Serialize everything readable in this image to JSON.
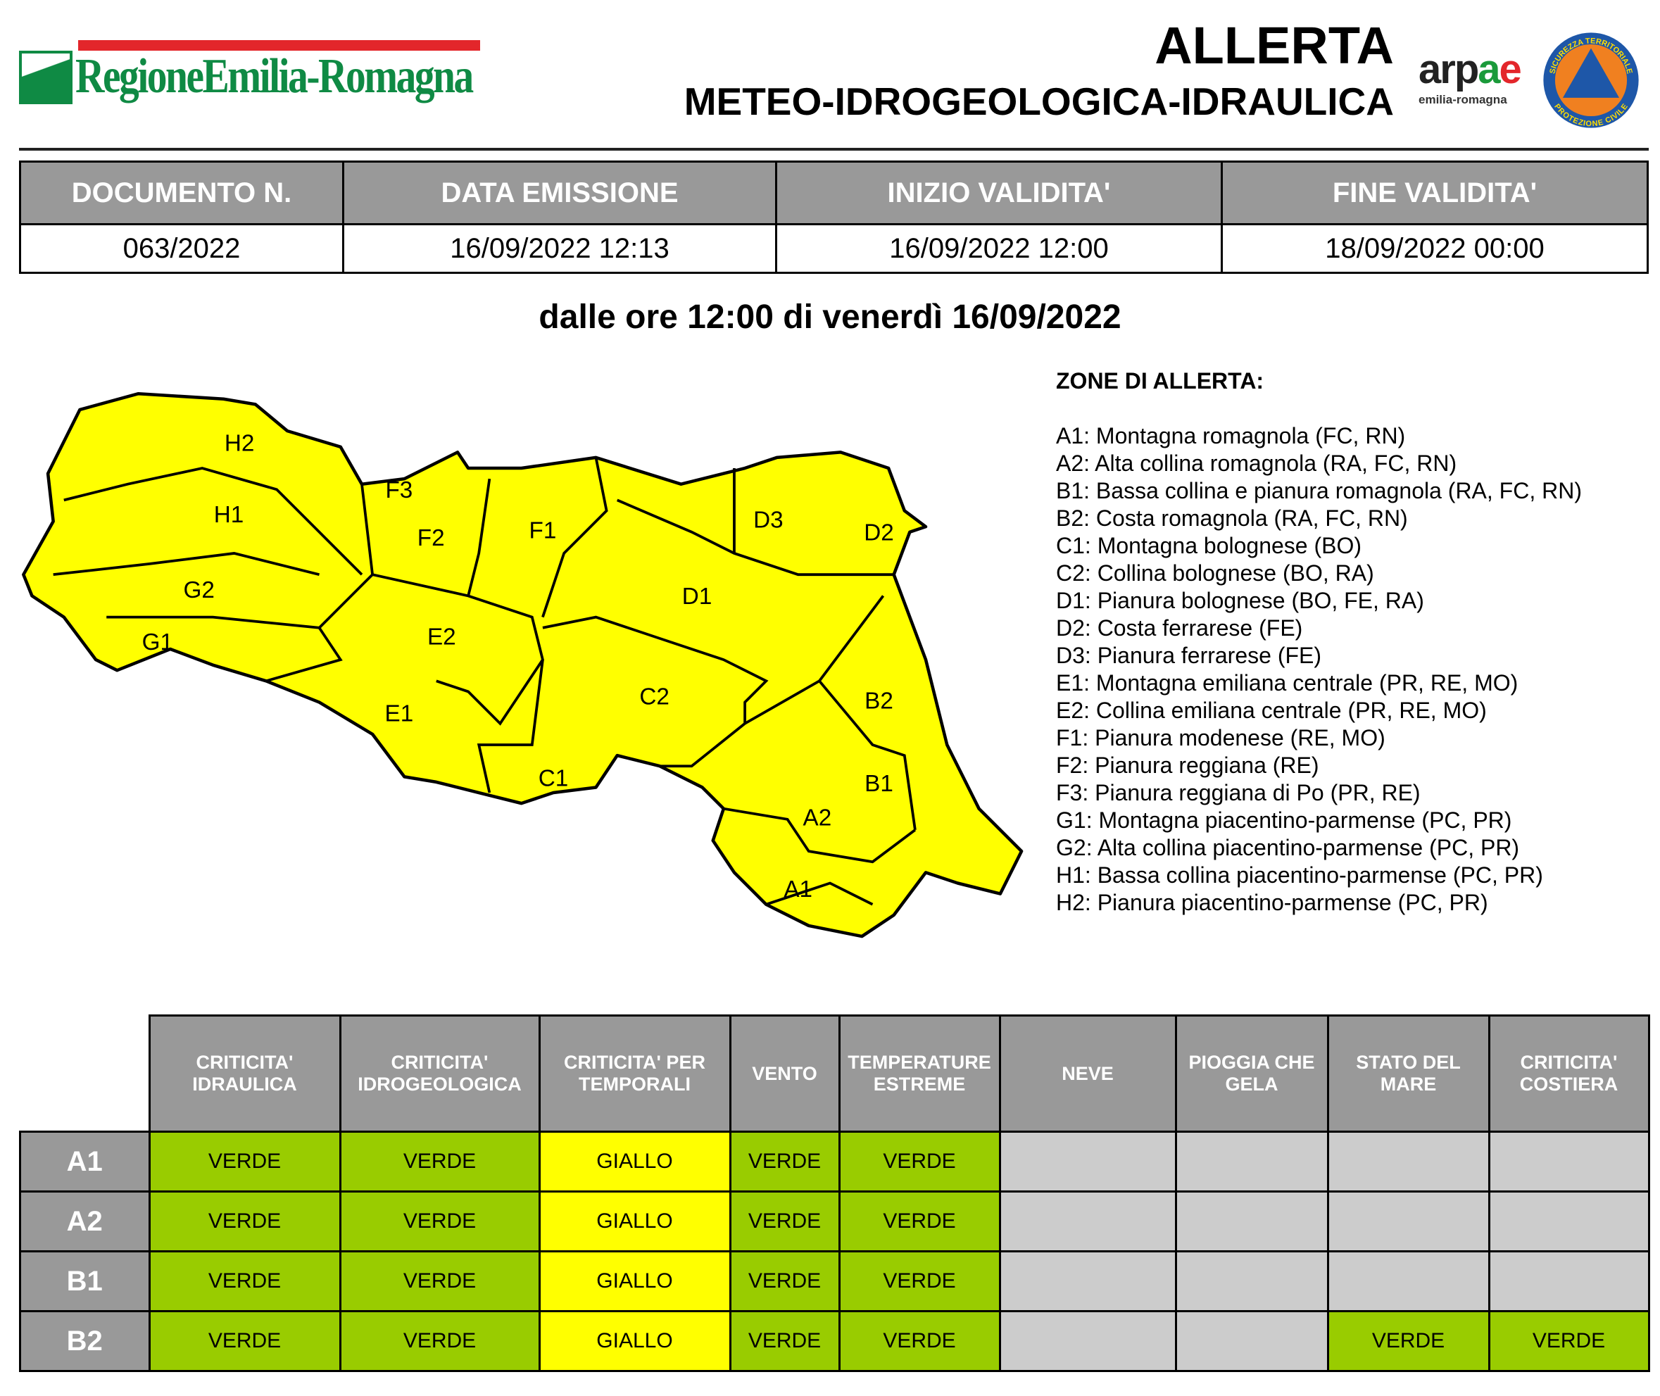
{
  "header": {
    "logo_text": "RegioneEmilia-Romagna",
    "title": "ALLERTA",
    "subtitle": "METEO-IDROGEOLOGICA-IDRAULICA",
    "arpae_logo": {
      "main": "arpae",
      "sub": "emilia-romagna"
    },
    "pc_logo": {
      "top": "SICUREZZA TERRITORIALE",
      "bottom": "PROTEZIONE CIVILE"
    }
  },
  "document": {
    "headers": [
      "DOCUMENTO N.",
      "DATA EMISSIONE",
      "INIZIO VALIDITA'",
      "FINE VALIDITA'"
    ],
    "values": [
      "063/2022",
      "16/09/2022 12:13",
      "16/09/2022 12:00",
      "18/09/2022 00:00"
    ]
  },
  "period": "dalle ore 12:00 di venerdì 16/09/2022",
  "map": {
    "fill": "#ffff00",
    "labels": [
      "H2",
      "H1",
      "F3",
      "F2",
      "F1",
      "D3",
      "D2",
      "D1",
      "G2",
      "G1",
      "E2",
      "E1",
      "C2",
      "B2",
      "B1",
      "C1",
      "A2",
      "A1"
    ]
  },
  "legend": {
    "title": "ZONE DI ALLERTA:",
    "items": [
      "A1: Montagna romagnola (FC, RN)",
      "A2: Alta collina romagnola (RA, FC, RN)",
      "B1: Bassa collina e pianura romagnola (RA, FC, RN)",
      "B2: Costa romagnola (RA, FC, RN)",
      "C1: Montagna bolognese (BO)",
      "C2: Collina bolognese (BO, RA)",
      "D1: Pianura bolognese (BO, FE, RA)",
      "D2: Costa ferrarese (FE)",
      "D3: Pianura ferrarese (FE)",
      "E1: Montagna emiliana centrale (PR, RE, MO)",
      "E2: Collina emiliana centrale (PR, RE, MO)",
      "F1: Pianura modenese (RE, MO)",
      "F2: Pianura reggiana (RE)",
      "F3: Pianura reggiana di Po (PR, RE)",
      "G1: Montagna piacentino-parmense (PC, PR)",
      "G2: Alta collina piacentino-parmense (PC, PR)",
      "H1: Bassa collina piacentino-parmense (PC, PR)",
      "H2: Pianura piacentino-parmense (PC, PR)"
    ]
  },
  "alerts": {
    "colors": {
      "VERDE": "#99cc00",
      "GIALLO": "#ffff00",
      "none": "#cccccc"
    },
    "columns": [
      "CRITICITA' IDRAULICA",
      "CRITICITA' IDROGEOLOGICA",
      "CRITICITA' PER TEMPORALI",
      "VENTO",
      "TEMPERATURE ESTREME",
      "NEVE",
      "PIOGGIA CHE GELA",
      "STATO DEL MARE",
      "CRITICITA' COSTIERA"
    ],
    "rows": [
      {
        "zone": "A1",
        "values": [
          "VERDE",
          "VERDE",
          "GIALLO",
          "VERDE",
          "VERDE",
          "",
          "",
          "",
          ""
        ]
      },
      {
        "zone": "A2",
        "values": [
          "VERDE",
          "VERDE",
          "GIALLO",
          "VERDE",
          "VERDE",
          "",
          "",
          "",
          ""
        ]
      },
      {
        "zone": "B1",
        "values": [
          "VERDE",
          "VERDE",
          "GIALLO",
          "VERDE",
          "VERDE",
          "",
          "",
          "",
          ""
        ]
      },
      {
        "zone": "B2",
        "values": [
          "VERDE",
          "VERDE",
          "GIALLO",
          "VERDE",
          "VERDE",
          "",
          "",
          "VERDE",
          "VERDE"
        ]
      }
    ]
  }
}
